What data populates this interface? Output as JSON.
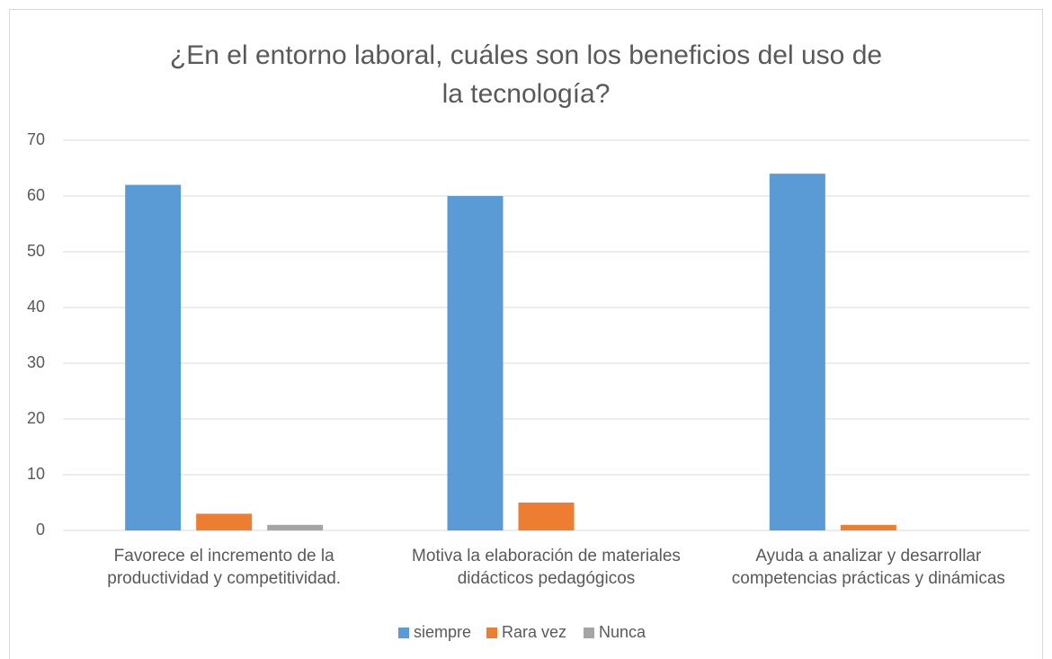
{
  "chart_data": {
    "type": "bar",
    "title": [
      "¿En el entorno laboral, cuáles son los beneficios del uso de",
      "la tecnología?"
    ],
    "categories": [
      "Favorece el incremento de la productividad y competitividad.",
      "Motiva la elaboración de materiales didácticos pedagógicos",
      "Ayuda a analizar y desarrollar competencias prácticas y dinámicas"
    ],
    "series": [
      {
        "name": "siempre",
        "color": "#5b9bd5",
        "values": [
          62,
          60,
          64
        ]
      },
      {
        "name": "Rara vez",
        "color": "#ed7d31",
        "values": [
          3,
          5,
          1
        ]
      },
      {
        "name": "Nunca",
        "color": "#a5a5a5",
        "values": [
          1,
          0,
          0
        ]
      }
    ],
    "ylim": [
      0,
      70
    ],
    "yticks": [
      0,
      10,
      20,
      30,
      40,
      50,
      60,
      70
    ],
    "grid": true,
    "legend": "bottom"
  }
}
